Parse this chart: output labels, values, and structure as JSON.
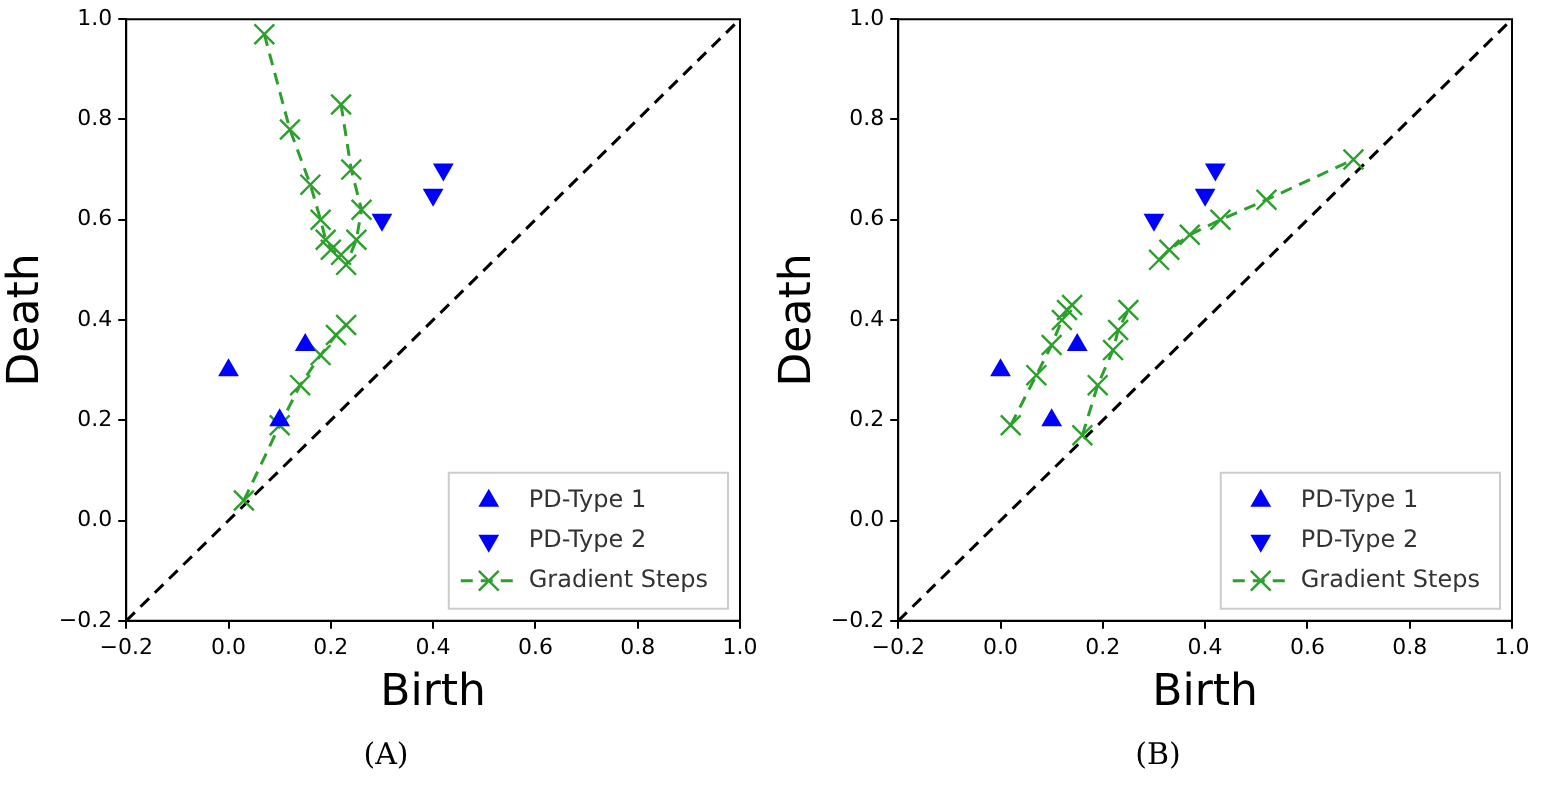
{
  "chart_data": [
    {
      "type": "scatter",
      "xlabel": "Birth",
      "ylabel": "Death",
      "annotations": [
        "(A)"
      ],
      "grid": false,
      "legend": "bottom right",
      "xlim": [
        -0.2,
        1.0
      ],
      "ylim": [
        -0.2,
        1.0
      ],
      "xticks": [
        {
          "value": -0.2,
          "label": "−0.2"
        },
        {
          "value": 0,
          "label": "0.0"
        },
        {
          "value": 0.2,
          "label": "0.2"
        },
        {
          "value": 0.4,
          "label": "0.4"
        },
        {
          "value": 0.6,
          "label": "0.6"
        },
        {
          "value": 0.8,
          "label": "0.8"
        },
        {
          "value": 1.0,
          "label": "1.0"
        }
      ],
      "yticks": [
        {
          "value": -0.2,
          "label": "−0.2"
        },
        {
          "value": 0,
          "label": "0.0"
        },
        {
          "value": 0.2,
          "label": "0.2"
        },
        {
          "value": 0.4,
          "label": "0.4"
        },
        {
          "value": 0.6,
          "label": "0.6"
        },
        {
          "value": 0.8,
          "label": "0.8"
        },
        {
          "value": 1.0,
          "label": "1.0"
        }
      ],
      "series": [
        {
          "type": "line",
          "color": "#000000",
          "line_style": "dashed",
          "marker": "none",
          "x": [
            -0.2,
            1.0
          ],
          "values": [
            -0.2,
            1.0
          ]
        },
        {
          "name": "PD-Type 1",
          "color": "#0000ff",
          "marker": "triangle",
          "x": [
            0,
            0.1,
            0.15
          ],
          "values": [
            0.3,
            0.2,
            0.35
          ]
        },
        {
          "name": "PD-Type 2",
          "color": "#0000ff",
          "marker": "triangle-down",
          "x": [
            0.3,
            0.4,
            0.42
          ],
          "values": [
            0.6,
            0.65,
            0.7
          ]
        },
        {
          "name": "Gradient Steps",
          "type": "line",
          "color": "#2ca02c",
          "line_style": "dashed",
          "marker": "cross",
          "x": [
            0.03,
            0.1,
            0.14,
            0.18,
            0.21,
            0.23,
            null,
            0.07,
            0.12,
            0.16,
            0.18,
            0.19,
            0.2,
            0.22,
            null,
            0.22,
            0.24,
            0.26,
            0.25,
            0.23
          ],
          "values": [
            0.04,
            0.19,
            0.27,
            0.33,
            0.37,
            0.39,
            null,
            0.97,
            0.78,
            0.67,
            0.6,
            0.56,
            0.54,
            0.53,
            null,
            0.83,
            0.7,
            0.62,
            0.56,
            0.51
          ]
        }
      ]
    },
    {
      "type": "scatter",
      "xlabel": "Birth",
      "ylabel": "Death",
      "annotations": [
        "(B)"
      ],
      "grid": false,
      "legend": "bottom right",
      "xlim": [
        -0.2,
        1.0
      ],
      "ylim": [
        -0.2,
        1.0
      ],
      "xticks": [
        {
          "value": -0.2,
          "label": "−0.2"
        },
        {
          "value": 0,
          "label": "0.0"
        },
        {
          "value": 0.2,
          "label": "0.2"
        },
        {
          "value": 0.4,
          "label": "0.4"
        },
        {
          "value": 0.6,
          "label": "0.6"
        },
        {
          "value": 0.8,
          "label": "0.8"
        },
        {
          "value": 1.0,
          "label": "1.0"
        }
      ],
      "yticks": [
        {
          "value": -0.2,
          "label": "−0.2"
        },
        {
          "value": 0,
          "label": "0.0"
        },
        {
          "value": 0.2,
          "label": "0.2"
        },
        {
          "value": 0.4,
          "label": "0.4"
        },
        {
          "value": 0.6,
          "label": "0.6"
        },
        {
          "value": 0.8,
          "label": "0.8"
        },
        {
          "value": 1.0,
          "label": "1.0"
        }
      ],
      "series": [
        {
          "type": "line",
          "color": "#000000",
          "line_style": "dashed",
          "marker": "none",
          "x": [
            -0.2,
            1.0
          ],
          "values": [
            -0.2,
            1.0
          ]
        },
        {
          "name": "PD-Type 1",
          "color": "#0000ff",
          "marker": "triangle",
          "x": [
            0,
            0.1,
            0.15
          ],
          "values": [
            0.3,
            0.2,
            0.35
          ]
        },
        {
          "name": "PD-Type 2",
          "color": "#0000ff",
          "marker": "triangle-down",
          "x": [
            0.3,
            0.4,
            0.42
          ],
          "values": [
            0.6,
            0.65,
            0.7
          ]
        },
        {
          "name": "Gradient Steps",
          "type": "line",
          "color": "#2ca02c",
          "line_style": "dashed",
          "marker": "cross",
          "x": [
            0.02,
            0.07,
            0.1,
            0.12,
            0.13,
            0.14,
            null,
            0.16,
            0.19,
            0.22,
            0.23,
            0.25,
            null,
            0.31,
            0.33,
            0.37,
            0.43,
            0.52,
            0.69
          ],
          "values": [
            0.19,
            0.29,
            0.35,
            0.4,
            0.42,
            0.43,
            null,
            0.17,
            0.27,
            0.34,
            0.38,
            0.42,
            null,
            0.52,
            0.54,
            0.57,
            0.6,
            0.64,
            0.72
          ]
        }
      ]
    }
  ]
}
